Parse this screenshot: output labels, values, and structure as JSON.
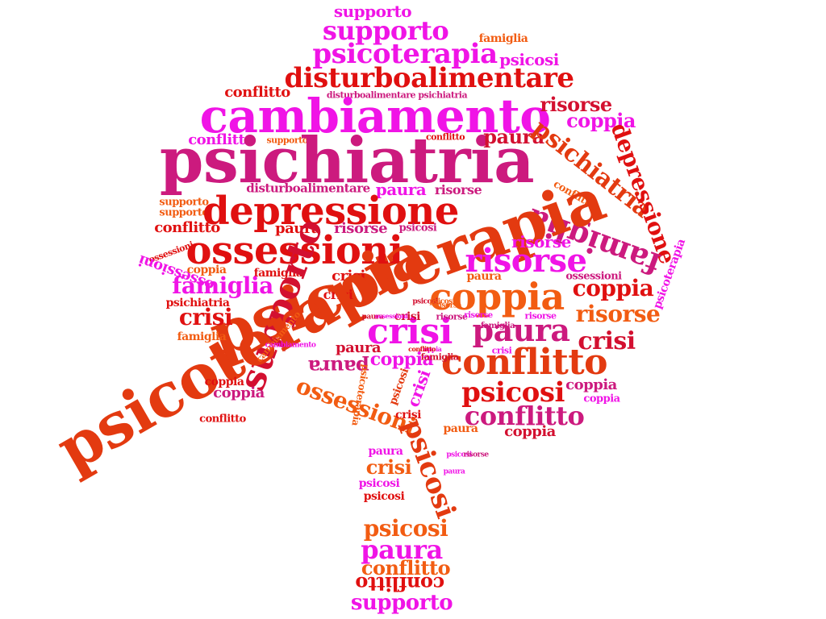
{
  "word_cloud": {
    "palette": {
      "magenta": "#f014e6",
      "pink": "#cc1a7e",
      "red": "#e01010",
      "crimson": "#d31030",
      "orange": "#f25c12",
      "orangered": "#e33a10"
    },
    "words": [
      {
        "text": "supporto",
        "color": "#f014e6"
      },
      {
        "text": "supporto",
        "color": "#f014e6"
      },
      {
        "text": "famiglia",
        "color": "#f25c12"
      },
      {
        "text": "psicoterapia",
        "color": "#f014e6"
      },
      {
        "text": "psicosi",
        "color": "#f014e6"
      },
      {
        "text": "disturboalimentare",
        "color": "#e01010"
      },
      {
        "text": "conflitto",
        "color": "#e01010"
      },
      {
        "text": "disturboalimentare psichiatria",
        "color": "#cc1a7e"
      },
      {
        "text": "cambiamento",
        "color": "#f014e6"
      },
      {
        "text": "risorse",
        "color": "#d31030"
      },
      {
        "text": "coppia",
        "color": "#f014e6"
      },
      {
        "text": "conflitto",
        "color": "#f014e6"
      },
      {
        "text": "supporto",
        "color": "#f25c12"
      },
      {
        "text": "psichiatria",
        "color": "#cc1a7e"
      },
      {
        "text": "paura",
        "color": "#d31030"
      },
      {
        "text": "conflitto",
        "color": "#e01010"
      },
      {
        "text": "psichiatria",
        "color": "#e33a10"
      },
      {
        "text": "depressione",
        "color": "#e01010"
      },
      {
        "text": "disturboalimentare",
        "color": "#cc1a7e"
      },
      {
        "text": "paura",
        "color": "#f014e6"
      },
      {
        "text": "risorse",
        "color": "#cc1a7e"
      },
      {
        "text": "conflitto",
        "color": "#f25c12"
      },
      {
        "text": "supporto",
        "color": "#f25c12"
      },
      {
        "text": "supporto",
        "color": "#f25c12"
      },
      {
        "text": "depressione",
        "color": "#e01010"
      },
      {
        "text": "famiglia",
        "color": "#cc1a7e"
      },
      {
        "text": "psicoterapia",
        "color": "#e33a10"
      },
      {
        "text": "conflitto",
        "color": "#e01010"
      },
      {
        "text": "psicosi",
        "color": "#cc1a7e"
      },
      {
        "text": "risorse",
        "color": "#cc1a7e"
      },
      {
        "text": "paura",
        "color": "#e01010"
      },
      {
        "text": "ossessioni",
        "color": "#e01010"
      },
      {
        "text": "risorse",
        "color": "#f014e6"
      },
      {
        "text": "psicoterapia",
        "color": "#f014e6"
      },
      {
        "text": "ossessioni",
        "color": "#e01010"
      },
      {
        "text": "risorse",
        "color": "#f014e6"
      },
      {
        "text": "ossessioni",
        "color": "#f014e6"
      },
      {
        "text": "coppia",
        "color": "#f25c12"
      },
      {
        "text": "famiglia",
        "color": "#e01010"
      },
      {
        "text": "crisi",
        "color": "#e01010"
      },
      {
        "text": "paura",
        "color": "#f25c12"
      },
      {
        "text": "ossessioni",
        "color": "#cc1a7e"
      },
      {
        "text": "supporto",
        "color": "#d31030"
      },
      {
        "text": "famiglia",
        "color": "#f014e6"
      },
      {
        "text": "coppia",
        "color": "#e01010"
      },
      {
        "text": "psichiatria",
        "color": "#e01010"
      },
      {
        "text": "crisi",
        "color": "#e01010"
      },
      {
        "text": "coppia",
        "color": "#f25c12"
      },
      {
        "text": "risorse",
        "color": "#f25c12"
      },
      {
        "text": "psicoterapia",
        "color": "#e33a10"
      },
      {
        "text": "crisi",
        "color": "#e01010"
      },
      {
        "text": "crisi",
        "color": "#f014e6"
      },
      {
        "text": "paura",
        "color": "#cc1a7e"
      },
      {
        "text": "crisi",
        "color": "#d31030"
      },
      {
        "text": "famiglia",
        "color": "#f25c12"
      },
      {
        "text": "cambiamento",
        "color": "#f25c12"
      },
      {
        "text": "risorse",
        "color": "#f014e6"
      },
      {
        "text": "risorse",
        "color": "#cc1a7e"
      },
      {
        "text": "crisi",
        "color": "#d31030"
      },
      {
        "text": "paura",
        "color": "#cc1a7e"
      },
      {
        "text": "conflitto",
        "color": "#e33a10"
      },
      {
        "text": "coppia",
        "color": "#f014e6"
      },
      {
        "text": "paura",
        "color": "#d31030"
      },
      {
        "text": "crisi",
        "color": "#f014e6"
      },
      {
        "text": "coppia",
        "color": "#e01010"
      },
      {
        "text": "coppia",
        "color": "#cc1a7e"
      },
      {
        "text": "conflitto",
        "color": "#e01010"
      },
      {
        "text": "coppia",
        "color": "#f014e6"
      },
      {
        "text": "famiglia",
        "color": "#d31030"
      },
      {
        "text": "psicoterapia",
        "color": "#f25c12"
      },
      {
        "text": "psicosi",
        "color": "#e33a10"
      },
      {
        "text": "psicosi",
        "color": "#e01010"
      },
      {
        "text": "coppia",
        "color": "#cc1a7e"
      },
      {
        "text": "ossessioni",
        "color": "#f25c12"
      },
      {
        "text": "crisi",
        "color": "#f014e6"
      },
      {
        "text": "conflitto",
        "color": "#cc1a7e"
      },
      {
        "text": "crisi",
        "color": "#e01010"
      },
      {
        "text": "coppia",
        "color": "#d31030"
      },
      {
        "text": "psicosi",
        "color": "#e33a10"
      },
      {
        "text": "paura",
        "color": "#f25c12"
      },
      {
        "text": "paura",
        "color": "#f014e6"
      },
      {
        "text": "crisi",
        "color": "#f25c12"
      },
      {
        "text": "psicosi",
        "color": "#f014e6"
      },
      {
        "text": "psicosi",
        "color": "#e01010"
      },
      {
        "text": "psicosi",
        "color": "#f25c12"
      },
      {
        "text": "paura",
        "color": "#f014e6"
      },
      {
        "text": "conflitto",
        "color": "#f25c12"
      },
      {
        "text": "conflitto",
        "color": "#e01010"
      },
      {
        "text": "supporto",
        "color": "#f014e6"
      },
      {
        "text": "psicosi",
        "color": "#f014e6"
      },
      {
        "text": "risorse",
        "color": "#cc1a7e"
      },
      {
        "text": "paura",
        "color": "#f014e6"
      },
      {
        "text": "psicosi",
        "color": "#d31030"
      },
      {
        "text": "psicosi",
        "color": "#f25c12"
      },
      {
        "text": "risorse",
        "color": "#f25c12"
      },
      {
        "text": "paura",
        "color": "#d31030"
      },
      {
        "text": "risorse",
        "color": "#f014e6"
      },
      {
        "text": "famiglia",
        "color": "#cc1a7e"
      },
      {
        "text": "cambiamento",
        "color": "#f014e6"
      },
      {
        "text": "coppia",
        "color": "#f014e6"
      },
      {
        "text": "conflitto",
        "color": "#e01010"
      },
      {
        "text": "ossessioni",
        "color": "#f014e6"
      }
    ]
  }
}
